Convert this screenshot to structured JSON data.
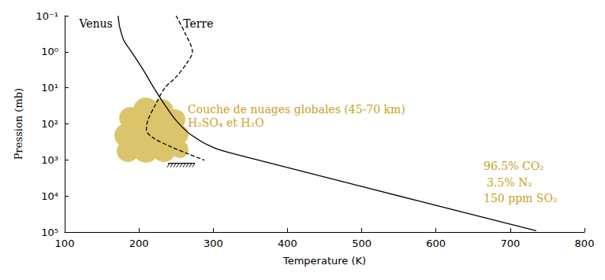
{
  "chart_data": {
    "type": "line",
    "xlabel": "Temperature (K)",
    "ylabel": "Pression (mb)",
    "log": "y",
    "grid": false,
    "xlim": [
      100,
      800
    ],
    "xticks": [
      100,
      200,
      300,
      400,
      500,
      600,
      700,
      800
    ],
    "ylim": [
      100000,
      0.1
    ],
    "yticks": [
      {
        "value": 0.1,
        "label": "10⁻¹"
      },
      {
        "value": 1,
        "label": "10⁰"
      },
      {
        "value": 10,
        "label": "10¹"
      },
      {
        "value": 100,
        "label": "10²"
      },
      {
        "value": 1000,
        "label": "10³"
      },
      {
        "value": 10000,
        "label": "10⁴"
      },
      {
        "value": 100000,
        "label": "10⁵"
      }
    ],
    "series": [
      {
        "name": "Venus",
        "color": "#000000",
        "line_style": "solid",
        "x": [
          172,
          174,
          180,
          190,
          205,
          220,
          235,
          250,
          270,
          300,
          330,
          735
        ],
        "values": [
          0.1,
          0.2,
          0.5,
          1,
          3,
          10,
          30,
          80,
          200,
          450,
          700,
          92000
        ]
      },
      {
        "name": "Terre",
        "color": "#000000",
        "line_style": "dashed",
        "x": [
          250,
          262,
          272,
          265,
          250,
          235,
          222,
          212,
          210,
          220,
          245,
          268,
          288
        ],
        "values": [
          0.1,
          0.3,
          1,
          2,
          5,
          10,
          30,
          80,
          150,
          250,
          450,
          700,
          1013
        ]
      }
    ],
    "annotations": [
      "Couche de nuages globales (45-70 km)",
      "H₂SO₄ et H₂O",
      "96.5% CO₂",
      "3.5% N₂",
      "150 ppm SO₂"
    ]
  }
}
